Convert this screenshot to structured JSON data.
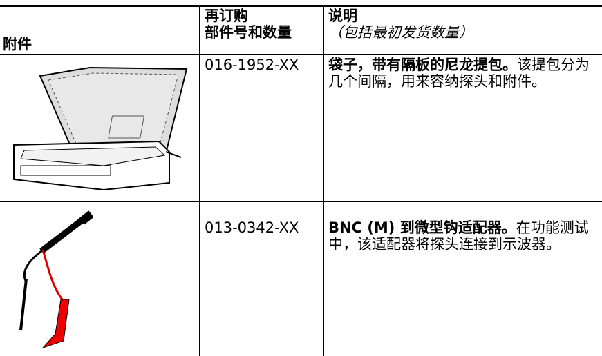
{
  "table": {
    "header": {
      "accessory": "附件",
      "reorder": [
        "再订购",
        "部件号和数量"
      ],
      "description": [
        "说明",
        "（包括最初发货数量）"
      ]
    },
    "rows": [
      {
        "part": "016-1952-XX",
        "title": "袋子，带有隔板的尼龙提包。",
        "text": "该提包分为几个间隔，用来容纳探头和附件。"
      },
      {
        "part": "013-0342-XX",
        "title": "BNC (M) 到微型钩适配器。",
        "text": "在功能测试中，该适配器将探头连接到示波器。"
      }
    ]
  }
}
